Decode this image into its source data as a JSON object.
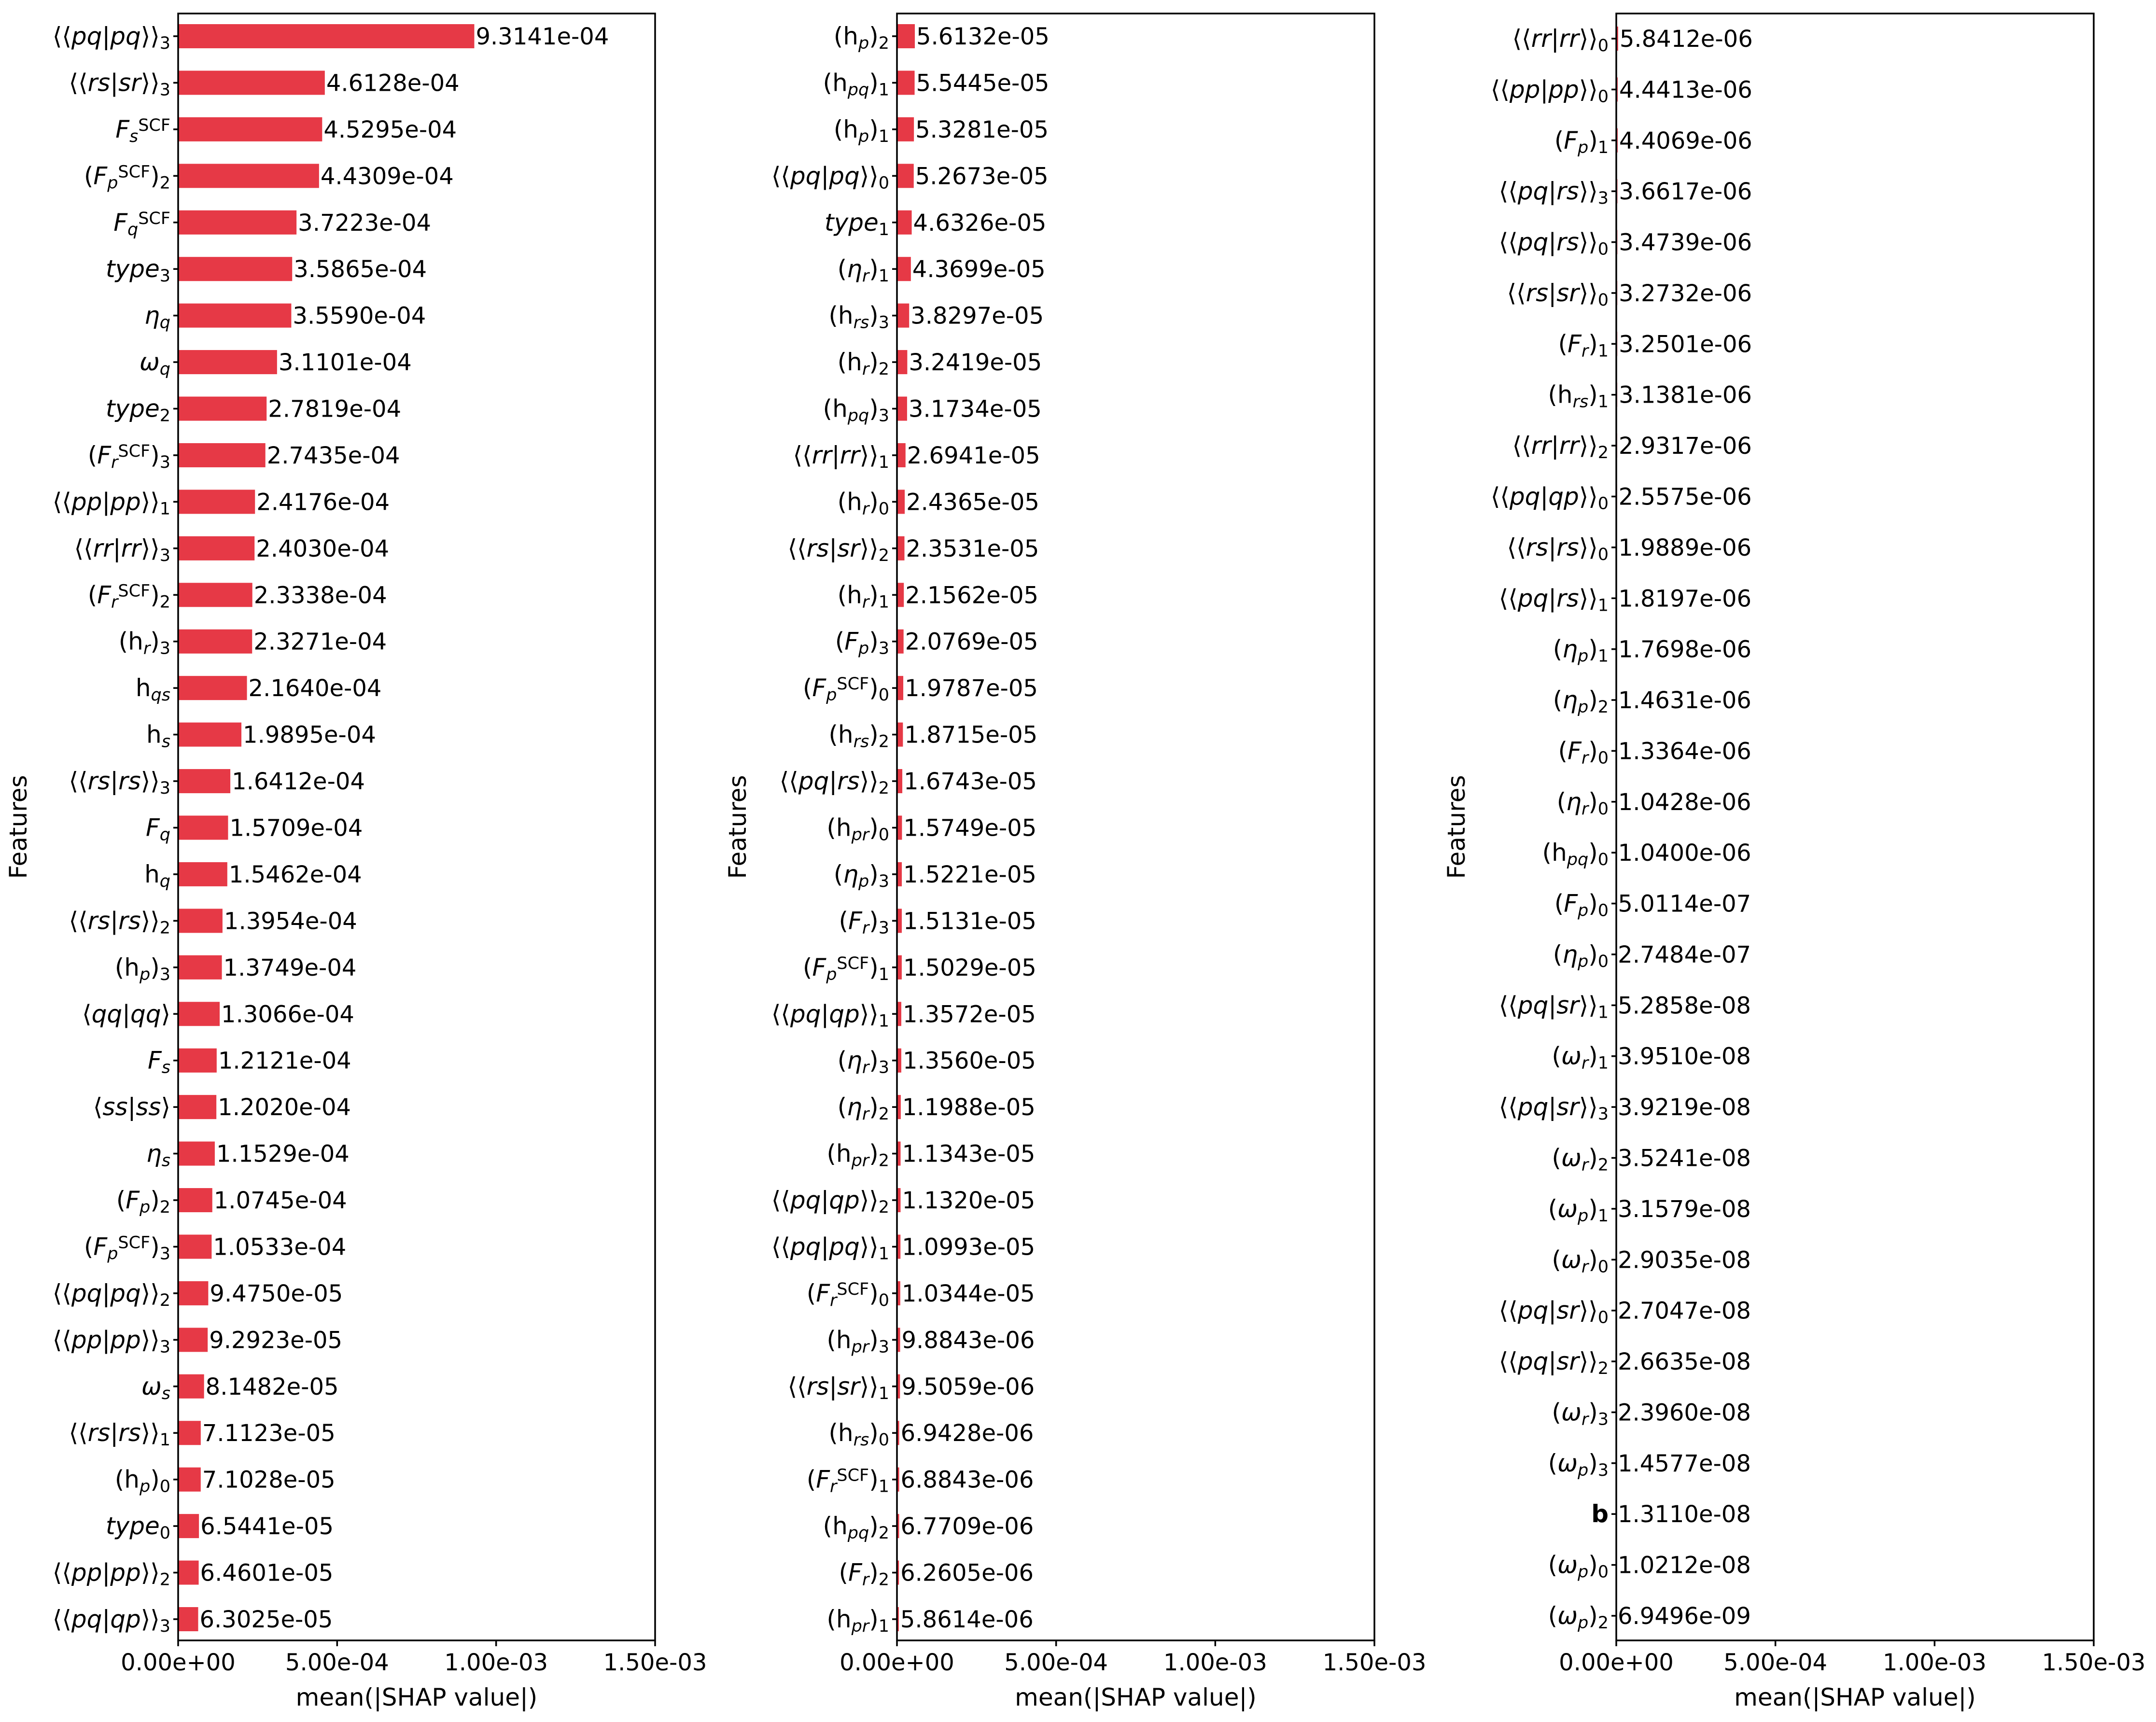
{
  "chart_data": [
    {
      "type": "bar",
      "orientation": "horizontal",
      "xlabel": "mean(|SHAP value|)",
      "ylabel": "Features",
      "xlim": [
        0,
        0.0015
      ],
      "xticks": [
        "0.00e+00",
        "5.00e-04",
        "1.00e-03",
        "1.50e-03"
      ],
      "color": "#e63946",
      "categories": [
        "⟨⟨pq|pq⟩⟩₃",
        "⟨⟨rs|sr⟩⟩₃",
        "F_s^SCF",
        "(F_p^SCF)₂",
        "F_q^SCF",
        "type₃",
        "η_q",
        "ω_q",
        "type₂",
        "(F_r^SCF)₃",
        "⟨⟨pp|pp⟩⟩₁",
        "⟨⟨rr|rr⟩⟩₃",
        "(F_r^SCF)₂",
        "(h_r)₃",
        "h_qs",
        "h_s",
        "⟨⟨rs|rs⟩⟩₃",
        "F_q",
        "h_q",
        "⟨⟨rs|rs⟩⟩₂",
        "(h_p)₃",
        "⟨qq|qq⟩",
        "F_s",
        "⟨ss|ss⟩",
        "η_s",
        "(F_p)₂",
        "(F_p^SCF)₃",
        "⟨⟨pq|pq⟩⟩₂",
        "⟨⟨pp|pp⟩⟩₃",
        "ω_s",
        "⟨⟨rs|rs⟩⟩₁",
        "(h_p)₀",
        "type₀",
        "⟨⟨pp|pp⟩⟩₂",
        "⟨⟨pq|qp⟩⟩₃"
      ],
      "value_labels": [
        "9.3141e-04",
        "4.6128e-04",
        "4.5295e-04",
        "4.4309e-04",
        "3.7223e-04",
        "3.5865e-04",
        "3.5590e-04",
        "3.1101e-04",
        "2.7819e-04",
        "2.7435e-04",
        "2.4176e-04",
        "2.4030e-04",
        "2.3338e-04",
        "2.3271e-04",
        "2.1640e-04",
        "1.9895e-04",
        "1.6412e-04",
        "1.5709e-04",
        "1.5462e-04",
        "1.3954e-04",
        "1.3749e-04",
        "1.3066e-04",
        "1.2121e-04",
        "1.2020e-04",
        "1.1529e-04",
        "1.0745e-04",
        "1.0533e-04",
        "9.4750e-05",
        "9.2923e-05",
        "8.1482e-05",
        "7.1123e-05",
        "7.1028e-05",
        "6.5441e-05",
        "6.4601e-05",
        "6.3025e-05"
      ],
      "values": [
        0.00093141,
        0.00046128,
        0.00045295,
        0.00044309,
        0.00037223,
        0.00035865,
        0.0003559,
        0.00031101,
        0.00027819,
        0.00027435,
        0.00024176,
        0.0002403,
        0.00023338,
        0.00023271,
        0.0002164,
        0.00019895,
        0.00016412,
        0.00015709,
        0.00015462,
        0.00013954,
        0.00013749,
        0.00013066,
        0.00012121,
        0.0001202,
        0.00011529,
        0.00010745,
        0.00010533,
        9.475e-05,
        9.2923e-05,
        8.1482e-05,
        7.1123e-05,
        7.1028e-05,
        6.5441e-05,
        6.4601e-05,
        6.3025e-05
      ]
    },
    {
      "type": "bar",
      "orientation": "horizontal",
      "xlabel": "mean(|SHAP value|)",
      "ylabel": "Features",
      "xlim": [
        0,
        0.0015
      ],
      "xticks": [
        "0.00e+00",
        "5.00e-04",
        "1.00e-03",
        "1.50e-03"
      ],
      "color": "#e63946",
      "categories": [
        "(h_p)₂",
        "(h_pq)₁",
        "(h_p)₁",
        "⟨⟨pq|pq⟩⟩₀",
        "type₁",
        "(η_r)₁",
        "(h_rs)₃",
        "(h_r)₂",
        "(h_pq)₃",
        "⟨⟨rr|rr⟩⟩₁",
        "(h_r)₀",
        "⟨⟨rs|sr⟩⟩₂",
        "(h_r)₁",
        "(F_p)₃",
        "(F_p^SCF)₀",
        "(h_rs)₂",
        "⟨⟨pq|rs⟩⟩₂",
        "(h_pr)₀",
        "(η_p)₃",
        "(F_r)₃",
        "(F_p^SCF)₁",
        "⟨⟨pq|qp⟩⟩₁",
        "(η_r)₃",
        "(η_r)₂",
        "(h_pr)₂",
        "⟨⟨pq|qp⟩⟩₂",
        "⟨⟨pq|pq⟩⟩₁",
        "(F_r^SCF)₀",
        "(h_pr)₃",
        "⟨⟨rs|sr⟩⟩₁",
        "(h_rs)₀",
        "(F_r^SCF)₁",
        "(h_pq)₂",
        "(F_r)₂",
        "(h_pr)₁"
      ],
      "value_labels": [
        "5.6132e-05",
        "5.5445e-05",
        "5.3281e-05",
        "5.2673e-05",
        "4.6326e-05",
        "4.3699e-05",
        "3.8297e-05",
        "3.2419e-05",
        "3.1734e-05",
        "2.6941e-05",
        "2.4365e-05",
        "2.3531e-05",
        "2.1562e-05",
        "2.0769e-05",
        "1.9787e-05",
        "1.8715e-05",
        "1.6743e-05",
        "1.5749e-05",
        "1.5221e-05",
        "1.5131e-05",
        "1.5029e-05",
        "1.3572e-05",
        "1.3560e-05",
        "1.1988e-05",
        "1.1343e-05",
        "1.1320e-05",
        "1.0993e-05",
        "1.0344e-05",
        "9.8843e-06",
        "9.5059e-06",
        "6.9428e-06",
        "6.8843e-06",
        "6.7709e-06",
        "6.2605e-06",
        "5.8614e-06"
      ],
      "values": [
        5.6132e-05,
        5.5445e-05,
        5.3281e-05,
        5.2673e-05,
        4.6326e-05,
        4.3699e-05,
        3.8297e-05,
        3.2419e-05,
        3.1734e-05,
        2.6941e-05,
        2.4365e-05,
        2.3531e-05,
        2.1562e-05,
        2.0769e-05,
        1.9787e-05,
        1.8715e-05,
        1.6743e-05,
        1.5749e-05,
        1.5221e-05,
        1.5131e-05,
        1.5029e-05,
        1.3572e-05,
        1.356e-05,
        1.1988e-05,
        1.1343e-05,
        1.132e-05,
        1.0993e-05,
        1.0344e-05,
        9.8843e-06,
        9.5059e-06,
        6.9428e-06,
        6.8843e-06,
        6.7709e-06,
        6.2605e-06,
        5.8614e-06
      ]
    },
    {
      "type": "bar",
      "orientation": "horizontal",
      "xlabel": "mean(|SHAP value|)",
      "ylabel": "Features",
      "xlim": [
        0,
        0.0015
      ],
      "xticks": [
        "0.00e+00",
        "5.00e-04",
        "1.00e-03",
        "1.50e-03"
      ],
      "color": "#e63946",
      "categories": [
        "⟨⟨rr|rr⟩⟩₀",
        "⟨⟨pp|pp⟩⟩₀",
        "(F_p)₁",
        "⟨⟨pq|rs⟩⟩₃",
        "⟨⟨pq|rs⟩⟩₀",
        "⟨⟨rs|sr⟩⟩₀",
        "(F_r)₁",
        "(h_rs)₁",
        "⟨⟨rr|rr⟩⟩₂",
        "⟨⟨pq|qp⟩⟩₀",
        "⟨⟨rs|rs⟩⟩₀",
        "⟨⟨pq|rs⟩⟩₁",
        "(η_p)₁",
        "(η_p)₂",
        "(F_r)₀",
        "(η_r)₀",
        "(h_pq)₀",
        "(F_p)₀",
        "(η_p)₀",
        "⟨⟨pq|sr⟩⟩₁",
        "(ω_r)₁",
        "⟨⟨pq|sr⟩⟩₃",
        "(ω_r)₂",
        "(ω_p)₁",
        "(ω_r)₀",
        "⟨⟨pq|sr⟩⟩₀",
        "⟨⟨pq|sr⟩⟩₂",
        "(ω_r)₃",
        "(ω_p)₃",
        "b",
        "(ω_p)₀",
        "(ω_p)₂"
      ],
      "value_labels": [
        "5.8412e-06",
        "4.4413e-06",
        "4.4069e-06",
        "3.6617e-06",
        "3.4739e-06",
        "3.2732e-06",
        "3.2501e-06",
        "3.1381e-06",
        "2.9317e-06",
        "2.5575e-06",
        "1.9889e-06",
        "1.8197e-06",
        "1.7698e-06",
        "1.4631e-06",
        "1.3364e-06",
        "1.0428e-06",
        "1.0400e-06",
        "5.0114e-07",
        "2.7484e-07",
        "5.2858e-08",
        "3.9510e-08",
        "3.9219e-08",
        "3.5241e-08",
        "3.1579e-08",
        "2.9035e-08",
        "2.7047e-08",
        "2.6635e-08",
        "2.3960e-08",
        "1.4577e-08",
        "1.3110e-08",
        "1.0212e-08",
        "6.9496e-09"
      ],
      "values": [
        5.8412e-06,
        4.4413e-06,
        4.4069e-06,
        3.6617e-06,
        3.4739e-06,
        3.2732e-06,
        3.2501e-06,
        3.1381e-06,
        2.9317e-06,
        2.5575e-06,
        1.9889e-06,
        1.8197e-06,
        1.7698e-06,
        1.4631e-06,
        1.3364e-06,
        1.0428e-06,
        1.04e-06,
        5.0114e-07,
        2.7484e-07,
        5.2858e-08,
        3.951e-08,
        3.9219e-08,
        3.5241e-08,
        3.1579e-08,
        2.9035e-08,
        2.7047e-08,
        2.6635e-08,
        2.396e-08,
        1.4577e-08,
        1.311e-08,
        1.0212e-08,
        6.9496e-09
      ]
    }
  ]
}
